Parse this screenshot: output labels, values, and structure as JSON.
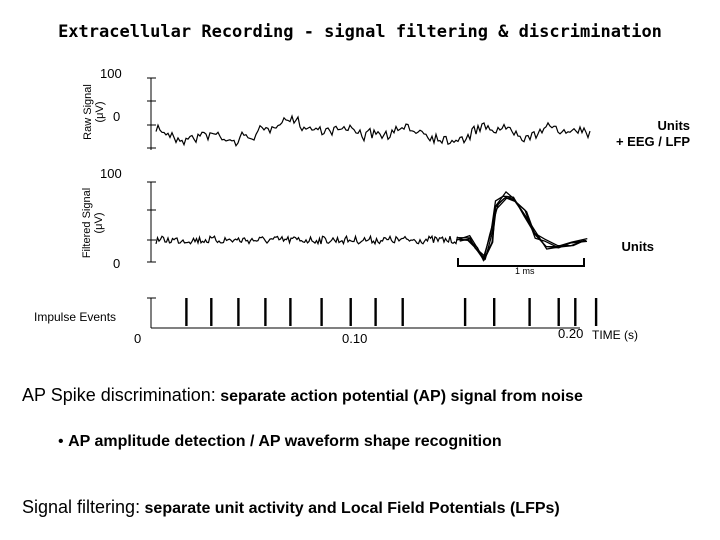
{
  "title": "Extracellular Recording - signal filtering & discrimination",
  "raw_panel": {
    "ylabel_line1": "Raw Signal",
    "ylabel_line2": "(μV)",
    "tick_top": "100",
    "tick_mid": "0",
    "side_label_line1": "Units",
    "side_label_line2": "+ EEG / LFP"
  },
  "filtered_panel": {
    "ylabel_line1": "Filtered Signal",
    "ylabel_line2": "(μV)",
    "tick_top": "100",
    "tick_bottom": "0",
    "side_label": "Units",
    "scale_label": "1 ms"
  },
  "events_panel": {
    "label": "Impulse Events",
    "event_times": [
      0.017,
      0.029,
      0.042,
      0.055,
      0.067,
      0.082,
      0.096,
      0.108,
      0.121,
      0.151,
      0.165,
      0.182,
      0.196,
      0.204,
      0.214
    ]
  },
  "time_axis": {
    "ticks": [
      "0",
      "0.10",
      "0.20"
    ],
    "unit_label": "TIME (s)"
  },
  "text": {
    "line1_lead": "AP Spike discrimination:",
    "line1_rest": "separate action potential (AP) signal from noise",
    "bullet": "•",
    "line2": "AP amplitude detection / AP waveform shape recognition",
    "line3_lead": "Signal filtering:",
    "line3_rest": "separate unit activity and Local Field Potentials (LFPs)"
  },
  "colors": {
    "trace": "#000000",
    "axis": "#000000"
  }
}
